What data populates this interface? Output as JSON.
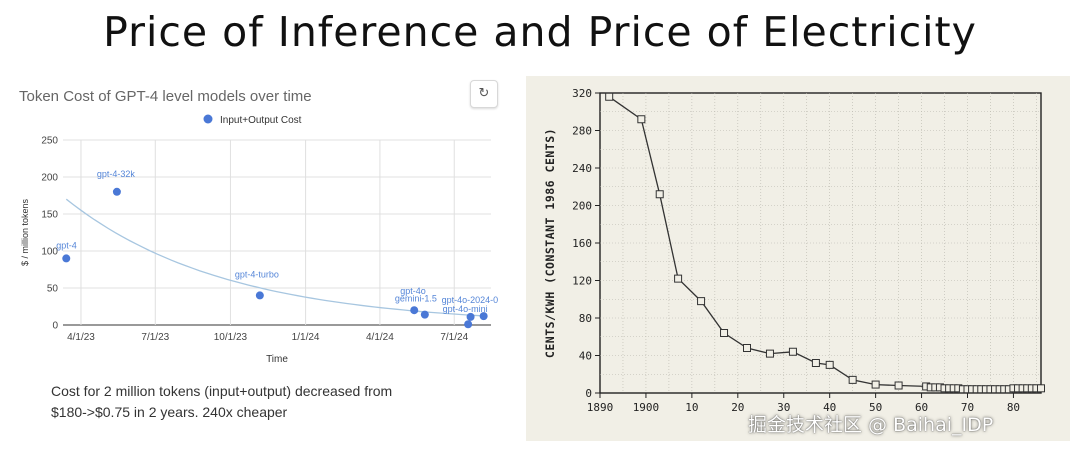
{
  "title": "Price of Inference and Price of Electricity",
  "refresh_icon": "refresh-icon",
  "refresh_glyph": "↻",
  "caption": {
    "line1": "Cost for 2 million tokens (input+output) decreased from",
    "line2": "$180->$0.75 in 2 years. 240x cheaper"
  },
  "watermark": "掘金技术社区 @ Baihai_IDP",
  "chart_data": [
    {
      "type": "scatter",
      "title": "Token Cost of GPT-4 level models over time",
      "xlabel": "Time",
      "ylabel": "$ / million tokens",
      "legend": {
        "label": "Input+Output Cost",
        "position": "top"
      },
      "colors": {
        "points": "#4a78d6",
        "trend": "#a7c6e0",
        "label": "#5586d8",
        "grid": "#e0e0e0"
      },
      "grid": true,
      "xlim": [
        "2023-03-10",
        "2024-08-15"
      ],
      "ylim": [
        0,
        250
      ],
      "yticks": [
        0,
        50,
        100,
        150,
        200,
        250
      ],
      "xticks": [
        {
          "date": "2023-04-01",
          "label": "4/1/23"
        },
        {
          "date": "2023-07-01",
          "label": "7/1/23"
        },
        {
          "date": "2023-10-01",
          "label": "10/1/23"
        },
        {
          "date": "2024-01-01",
          "label": "1/1/24"
        },
        {
          "date": "2024-04-01",
          "label": "4/1/24"
        },
        {
          "date": "2024-07-01",
          "label": "7/1/24"
        }
      ],
      "points": [
        {
          "date": "2023-03-14",
          "y": 90,
          "label": "gpt-4"
        },
        {
          "date": "2023-05-15",
          "y": 180,
          "label": "gpt-4-32k"
        },
        {
          "date": "2023-11-06",
          "y": 40,
          "label": "gpt-4-turbo"
        },
        {
          "date": "2024-05-13",
          "y": 20,
          "label": "gpt-4o"
        },
        {
          "date": "2024-05-26",
          "y": 14,
          "label": "gemini-1.5"
        },
        {
          "date": "2024-07-18",
          "y": 1,
          "label": ""
        },
        {
          "date": "2024-07-21",
          "y": 11,
          "label": "gpt-4o-mini"
        },
        {
          "date": "2024-08-06",
          "y": 12,
          "label": "gpt-4o-2024-0"
        }
      ],
      "trend": {
        "type": "exponential",
        "start": [
          "2023-03-14",
          170
        ],
        "end": [
          "2024-08-10",
          12
        ]
      }
    },
    {
      "type": "line",
      "title": "",
      "xlabel": "",
      "ylabel": "CENTS/KWH (CONSTANT 1986 CENTS)",
      "colors": {
        "line": "#333333",
        "grid": "#b8b6ac",
        "background": "#f1efe6"
      },
      "grid": true,
      "xlim": [
        1890,
        1986
      ],
      "ylim": [
        0,
        320
      ],
      "yticks": [
        0,
        40,
        80,
        120,
        160,
        200,
        240,
        280,
        320
      ],
      "xticks": [
        {
          "value": 1890,
          "label": "1890"
        },
        {
          "value": 1900,
          "label": "1900"
        },
        {
          "value": 1910,
          "label": "10"
        },
        {
          "value": 1920,
          "label": "20"
        },
        {
          "value": 1930,
          "label": "30"
        },
        {
          "value": 1940,
          "label": "40"
        },
        {
          "value": 1950,
          "label": "50"
        },
        {
          "value": 1960,
          "label": "60"
        },
        {
          "value": 1970,
          "label": "70"
        },
        {
          "value": 1980,
          "label": "80"
        }
      ],
      "x": [
        1892,
        1899,
        1903,
        1907,
        1912,
        1917,
        1922,
        1927,
        1932,
        1937,
        1940,
        1945,
        1950,
        1955,
        1961,
        1962,
        1963,
        1964,
        1965,
        1966,
        1967,
        1968,
        1969,
        1970,
        1971,
        1972,
        1973,
        1974,
        1975,
        1976,
        1977,
        1978,
        1979,
        1980,
        1981,
        1982,
        1983,
        1984,
        1985,
        1986
      ],
      "y": [
        316,
        292,
        212,
        122,
        98,
        64,
        48,
        42,
        44,
        32,
        30,
        14,
        9,
        8,
        7,
        6,
        6,
        6,
        5,
        5,
        5,
        5,
        4,
        4,
        4,
        4,
        4,
        4,
        4,
        4,
        4,
        4,
        4,
        5,
        5,
        5,
        5,
        5,
        5,
        5
      ]
    }
  ]
}
